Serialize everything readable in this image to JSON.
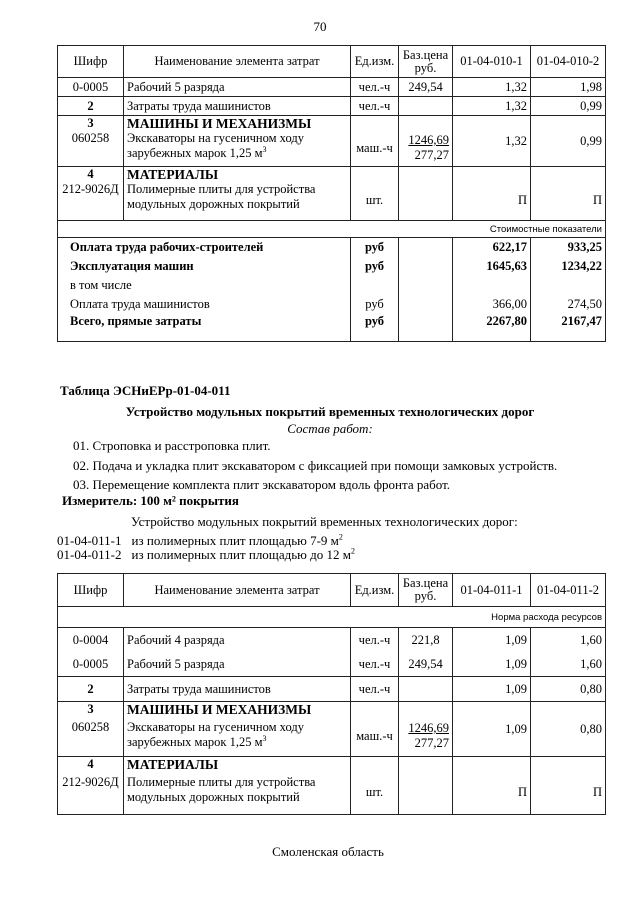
{
  "page_number": "70",
  "table1": {
    "headers": [
      "Шифр",
      "Наименование элемента затрат",
      "Ед.изм.",
      "Баз.цена руб.",
      "01-04-010-1",
      "01-04-010-2"
    ],
    "rows": [
      {
        "code": "0-0005",
        "name": "Рабочий 5 разряда",
        "unit": "чел.-ч",
        "price": "249,54",
        "v1": "1,32",
        "v2": "1,98"
      },
      {
        "code": "2",
        "name": "Затраты труда машинистов",
        "unit": "чел.-ч",
        "price": "",
        "v1": "1,32",
        "v2": "0,99"
      }
    ],
    "sec3": {
      "num": "3",
      "title": "МАШИНЫ И МЕХАНИЗМЫ",
      "code": "060258",
      "name1": "Экскаваторы на гусеничном ходу",
      "name2": "зарубежных марок 1,25 м",
      "sup": "3",
      "unit": "маш.-ч",
      "price1": "1246,69",
      "price2": "277,27",
      "v1": "1,32",
      "v2": "0,99"
    },
    "sec4": {
      "num": "4",
      "title": "МАТЕРИАЛЫ",
      "code": "212-9026Д",
      "name1": "Полимерные плиты для устройства",
      "name2": "модульных дорожных покрытий",
      "unit": "шт.",
      "v1": "П",
      "v2": "П"
    },
    "cost_label": "Стоимостные показатели",
    "summary": [
      {
        "name": "Оплата труда рабочих-строителей",
        "unit": "руб",
        "v1": "622,17",
        "v2": "933,25",
        "bold": true
      },
      {
        "name": "Эксплуатация машин",
        "unit": "руб",
        "v1": "1645,63",
        "v2": "1234,22",
        "bold": true
      },
      {
        "name": "в том числе",
        "unit": "",
        "v1": "",
        "v2": "",
        "bold": false
      },
      {
        "name": "Оплата труда машинистов",
        "unit": "руб",
        "v1": "366,00",
        "v2": "274,50",
        "bold": false
      },
      {
        "name": "Всего, прямые затраты",
        "unit": "руб",
        "v1": "2267,80",
        "v2": "2167,47",
        "bold": true
      }
    ]
  },
  "section": {
    "table_label": "Таблица  ЭСНиЕРр-01-04-011",
    "title": "Устройство модульных покрытий временных технологических дорог",
    "composition": "Состав работ:",
    "steps": [
      "01. Строповка  и расстроповка плит.",
      "02. Подача и укладка плит экскаватором с фиксацией при помощи замковых устройств.",
      "03. Перемещение комплекта плит экскаватором вдоль фронта работ."
    ],
    "meter": "Измеритель: 100 м² покрытия",
    "desc": "Устройство модульных покрытий временных технологических дорог:",
    "variants": [
      {
        "code": "01-04-011-1",
        "text": "из полимерных плит площадью 7-9 м",
        "sup": "2"
      },
      {
        "code": "01-04-011-2",
        "text": "из полимерных плит площадью до 12 м",
        "sup": "2"
      }
    ]
  },
  "table2": {
    "headers": [
      "Шифр",
      "Наименование элемента затрат",
      "Ед.изм.",
      "Баз.цена руб.",
      "01-04-011-1",
      "01-04-011-2"
    ],
    "norm_label": "Норма расхода ресурсов",
    "rows": [
      {
        "code": "0-0004",
        "name": "Рабочий 4 разряда",
        "unit": "чел.-ч",
        "price": "221,8",
        "v1": "1,09",
        "v2": "1,60"
      },
      {
        "code": "0-0005",
        "name": "Рабочий 5 разряда",
        "unit": "чел.-ч",
        "price": "249,54",
        "v1": "1,09",
        "v2": "1,60"
      },
      {
        "code": "2",
        "name": "Затраты труда машинистов",
        "unit": "чел.-ч",
        "price": "",
        "v1": "1,09",
        "v2": "0,80"
      }
    ],
    "sec3": {
      "num": "3",
      "title": "МАШИНЫ И МЕХАНИЗМЫ",
      "code": "060258",
      "name1": "Экскаваторы на гусеничном ходу",
      "name2": "зарубежных марок 1,25 м",
      "sup": "3",
      "unit": "маш.-ч",
      "price1": "1246,69",
      "price2": "277,27",
      "v1": "1,09",
      "v2": "0,80"
    },
    "sec4": {
      "num": "4",
      "title": "МАТЕРИАЛЫ",
      "code": "212-9026Д",
      "name1": "Полимерные плиты для устройства",
      "name2": "модульных дорожных покрытий",
      "unit": "шт.",
      "v1": "П",
      "v2": "П"
    }
  },
  "footer": "Смоленская область"
}
